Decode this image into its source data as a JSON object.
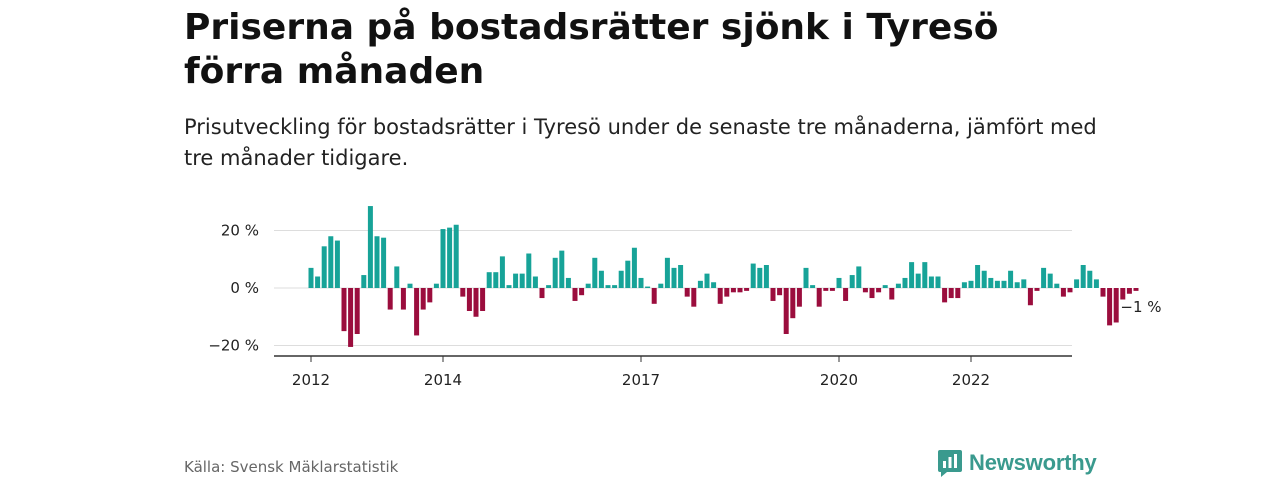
{
  "header": {
    "title": "Priserna på bostadsrätter sjönk i Tyresö förra månaden",
    "subtitle": "Prisutveckling för bostadsrätter i Tyresö under de senaste tre månaderna, jämfört med tre månader tidigare."
  },
  "footer": {
    "source": "Källa: Svensk Mäklarstatistik",
    "brand": "Newsworthy"
  },
  "chart_data": {
    "type": "bar",
    "ylim": [
      -24,
      24
    ],
    "yticks": [
      {
        "value": 20,
        "label": "20 %"
      },
      {
        "value": 0,
        "label": "0 %"
      },
      {
        "value": -20,
        "label": "−20 %"
      }
    ],
    "xticks": [
      {
        "index": 0,
        "label": "2012"
      },
      {
        "index": 20,
        "label": "2014"
      },
      {
        "index": 50,
        "label": "2017"
      },
      {
        "index": 80,
        "label": "2020"
      },
      {
        "index": 100,
        "label": "2022"
      }
    ],
    "colors": {
      "positive": "#17a398",
      "negative": "#9b0d3d",
      "axis": "#333333",
      "grid": "#dddddd"
    },
    "values": [
      7,
      4,
      14.5,
      18,
      16.5,
      -15,
      -20.5,
      -16,
      4.5,
      28.5,
      18,
      17.5,
      -7.5,
      7.5,
      -7.5,
      1.5,
      -16.5,
      -7.5,
      -5,
      1.5,
      20.5,
      21,
      22,
      -3,
      -8,
      -10,
      -8,
      5.5,
      5.5,
      11,
      1,
      5,
      5,
      12,
      4,
      -3.5,
      1,
      10.5,
      13,
      3.5,
      -4.5,
      -2.5,
      1.5,
      10.5,
      6,
      1,
      1,
      6,
      9.5,
      14,
      3.5,
      0.5,
      -5.5,
      1.5,
      10.5,
      7,
      8,
      -3,
      -6.5,
      2.5,
      5,
      2,
      -5.5,
      -3,
      -1.5,
      -1.5,
      -1,
      8.5,
      7,
      8,
      -4.5,
      -2.5,
      -16,
      -10.5,
      -6.5,
      7,
      1,
      -6.5,
      -1,
      -1,
      3.5,
      -4.5,
      4.5,
      7.5,
      -1.5,
      -3.5,
      -1.5,
      1,
      -4,
      1.5,
      3.5,
      9,
      5,
      9,
      4,
      4,
      -5,
      -3.5,
      -3.5,
      2,
      2.5,
      8,
      6,
      3.5,
      2.5,
      2.5,
      6,
      2,
      3,
      -6,
      -1,
      7,
      5,
      1.5,
      -3,
      -1.5,
      3,
      8,
      6,
      3,
      -3,
      -13,
      -12,
      -4,
      -2,
      -1
    ],
    "annotation": {
      "index": 125,
      "label": "−1 %"
    }
  }
}
